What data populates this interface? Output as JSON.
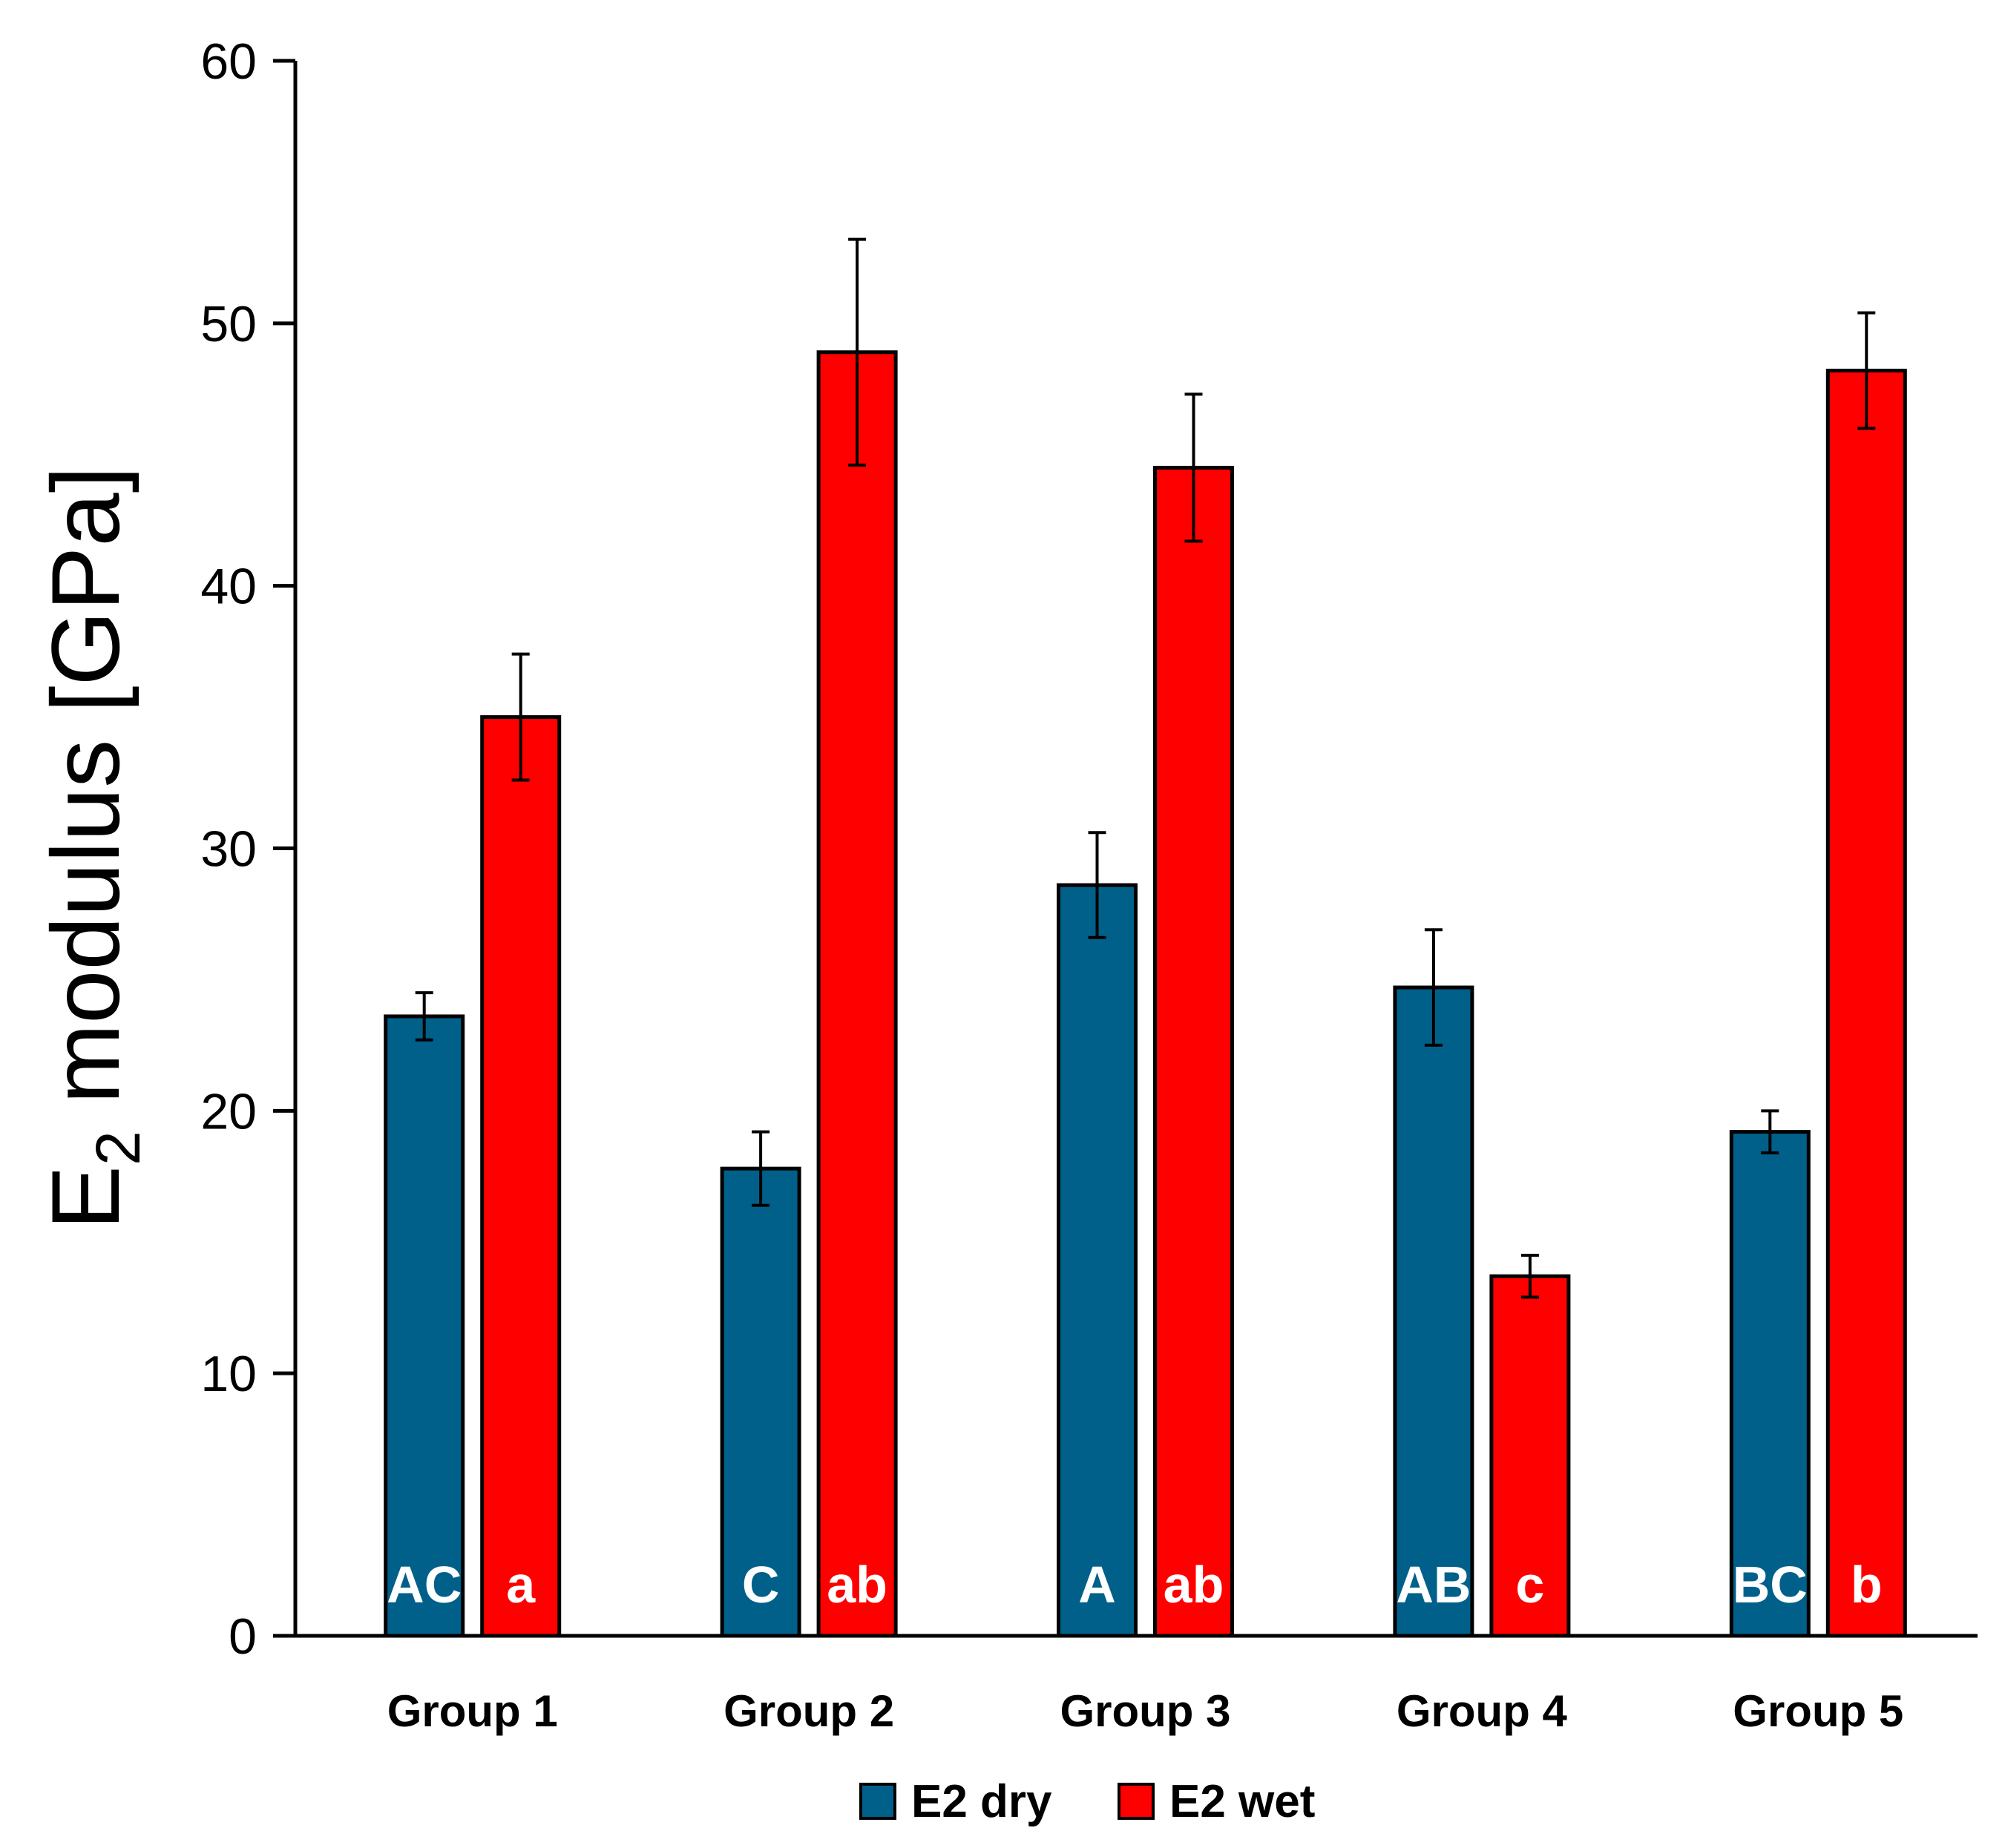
{
  "chart_data": {
    "type": "bar",
    "title": "",
    "xlabel": "",
    "ylabel": {
      "main": "E",
      "subscript": "2",
      "rest": " modulus [GPa]"
    },
    "ylim": [
      0,
      60
    ],
    "yticks": [
      0,
      10,
      20,
      30,
      40,
      50,
      60
    ],
    "categories": [
      "Group 1",
      "Group 2",
      "Group 3",
      "Group 4",
      "Group 5"
    ],
    "series": [
      {
        "name": "E2 dry",
        "color": "#00608A",
        "values": [
          23.6,
          17.8,
          28.6,
          24.7,
          19.2
        ],
        "errors": [
          0.9,
          1.4,
          2.0,
          2.2,
          0.8
        ],
        "letters": [
          "AC",
          "C",
          "A",
          "AB",
          "BC"
        ]
      },
      {
        "name": "E2 wet",
        "color": "#FF0000",
        "values": [
          35.0,
          48.9,
          44.5,
          13.7,
          48.2
        ],
        "errors": [
          2.4,
          4.3,
          2.8,
          0.8,
          2.2
        ],
        "letters": [
          "a",
          "ab",
          "ab",
          "c",
          "b"
        ]
      }
    ],
    "legend": {
      "position": "bottom"
    },
    "grid": false
  }
}
